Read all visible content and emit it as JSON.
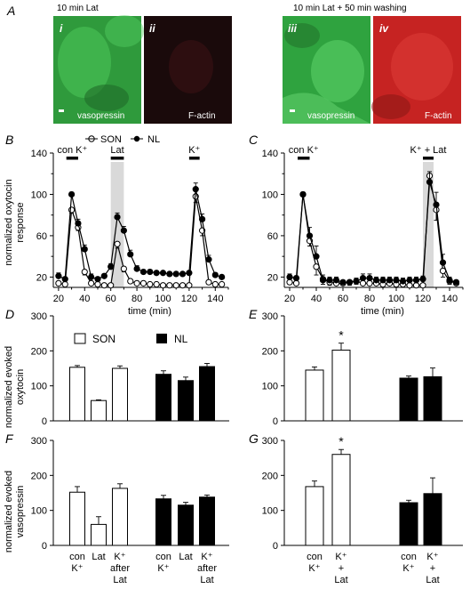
{
  "panels": {
    "A": {
      "letter": "A",
      "left_caption": "10 min Lat",
      "right_caption": "10 min Lat + 50 min washing",
      "images": [
        {
          "numeral": "i",
          "label": "vasopressin",
          "color": "#2f9a3c",
          "scale_bar": true
        },
        {
          "numeral": "ii",
          "label": "F-actin",
          "color": "#1a0a0b",
          "scale_bar": false
        },
        {
          "numeral": "iii",
          "label": "vasopressin",
          "color": "#2fa33f",
          "scale_bar": true
        },
        {
          "numeral": "iv",
          "label": "F-actin",
          "color": "#c62322",
          "scale_bar": false
        }
      ]
    },
    "legend_BC": {
      "open_label": "SON",
      "filled_label": "NL"
    },
    "legend_D": {
      "open_label": "SON",
      "filled_label": "NL"
    },
    "labels": {
      "B": "B",
      "C": "C",
      "D": "D",
      "E": "E",
      "F": "F",
      "G": "G"
    },
    "ylabel_BC": [
      "normalized oxytocin",
      "response"
    ],
    "ylabel_DE": [
      "normalized evoked",
      "oxytocin"
    ],
    "ylabel_FG": [
      "normalized evoked",
      "vasopressin"
    ],
    "xcats_DF": [
      [
        "con",
        "K⁺"
      ],
      [
        "Lat"
      ],
      [
        "K⁺",
        "after",
        "Lat"
      ],
      [
        "con",
        "K⁺"
      ],
      [
        "Lat"
      ],
      [
        "K⁺",
        "after",
        "Lat"
      ]
    ],
    "xcats_EG": [
      [
        "con",
        "K⁺"
      ],
      [
        "K⁺",
        "+",
        "Lat"
      ],
      [
        "con",
        "K⁺"
      ],
      [
        "K⁺",
        "+",
        "Lat"
      ]
    ]
  },
  "chart_data": [
    {
      "id": "B",
      "type": "line",
      "xlabel": "time (min)",
      "ylabel": "normalized oxytocin response",
      "xlim": [
        16,
        150
      ],
      "ylim": [
        10,
        140
      ],
      "xticks": [
        20,
        40,
        60,
        80,
        100,
        120,
        140
      ],
      "yticks": [
        20,
        60,
        100,
        140
      ],
      "yticks_minor": [
        40,
        80,
        120
      ],
      "stimuli": [
        {
          "label": "con K⁺",
          "start": 26,
          "end": 35,
          "shaded": false
        },
        {
          "label": "Lat",
          "start": 60,
          "end": 70,
          "shaded": true
        },
        {
          "label": "K⁺",
          "start": 120,
          "end": 128,
          "shaded": false
        }
      ],
      "series": [
        {
          "name": "SON",
          "marker": "open",
          "x": [
            20,
            25,
            30,
            35,
            40,
            45,
            50,
            55,
            60,
            65,
            70,
            75,
            80,
            85,
            90,
            95,
            100,
            105,
            110,
            115,
            120,
            125,
            130,
            135,
            140,
            145
          ],
          "y": [
            14,
            13,
            85,
            68,
            25,
            14,
            13,
            12,
            12,
            52,
            28,
            16,
            14,
            14,
            13,
            13,
            12,
            12,
            12,
            12,
            12,
            98,
            65,
            15,
            13,
            13
          ],
          "err": [
            2,
            1,
            3,
            3,
            3,
            2,
            1,
            1,
            1,
            4,
            3,
            2,
            1,
            1,
            1,
            1,
            1,
            1,
            1,
            1,
            1,
            6,
            5,
            2,
            1,
            1
          ]
        },
        {
          "name": "NL",
          "marker": "filled",
          "x": [
            20,
            25,
            30,
            35,
            40,
            45,
            50,
            55,
            60,
            65,
            70,
            75,
            80,
            85,
            90,
            95,
            100,
            105,
            110,
            115,
            120,
            125,
            130,
            135,
            140,
            145
          ],
          "y": [
            21,
            18,
            100,
            72,
            47,
            20,
            18,
            21,
            30,
            78,
            65,
            42,
            28,
            25,
            25,
            24,
            24,
            23,
            23,
            23,
            24,
            105,
            76,
            37,
            22,
            20
          ],
          "err": [
            3,
            2,
            2,
            4,
            4,
            3,
            2,
            2,
            3,
            4,
            4,
            4,
            3,
            2,
            2,
            2,
            2,
            2,
            2,
            2,
            2,
            6,
            5,
            4,
            2,
            2
          ]
        }
      ]
    },
    {
      "id": "C",
      "type": "line",
      "xlabel": "time (min)",
      "ylabel": "",
      "xlim": [
        16,
        150
      ],
      "ylim": [
        10,
        140
      ],
      "xticks": [
        20,
        40,
        60,
        80,
        100,
        120,
        140
      ],
      "yticks": [
        20,
        60,
        100,
        140
      ],
      "yticks_minor": [
        40,
        80,
        120
      ],
      "stimuli": [
        {
          "label": "con K⁺",
          "start": 26,
          "end": 35,
          "shaded": false
        },
        {
          "label": "K⁺ + Lat",
          "start": 120,
          "end": 128,
          "shaded": true
        }
      ],
      "series": [
        {
          "name": "SON",
          "marker": "open",
          "x": [
            20,
            25,
            30,
            35,
            40,
            45,
            50,
            55,
            60,
            65,
            70,
            75,
            80,
            85,
            90,
            95,
            100,
            105,
            110,
            115,
            120,
            125,
            130,
            135,
            140,
            145
          ],
          "y": [
            15,
            14,
            100,
            55,
            30,
            18,
            15,
            14,
            14,
            15,
            16,
            14,
            14,
            14,
            13,
            14,
            13,
            13,
            12,
            12,
            12,
            118,
            85,
            26,
            16,
            14
          ],
          "err": [
            2,
            2,
            2,
            5,
            8,
            5,
            3,
            2,
            2,
            3,
            3,
            2,
            2,
            2,
            2,
            2,
            2,
            2,
            2,
            2,
            2,
            5,
            10,
            6,
            3,
            2
          ],
          "err_up_only": false
        },
        {
          "name": "NL",
          "marker": "filled",
          "x": [
            20,
            25,
            30,
            35,
            40,
            45,
            50,
            55,
            60,
            65,
            70,
            75,
            80,
            85,
            90,
            95,
            100,
            105,
            110,
            115,
            120,
            125,
            130,
            135,
            140,
            145
          ],
          "y": [
            20,
            19,
            100,
            60,
            40,
            17,
            17,
            17,
            15,
            15,
            16,
            19,
            19,
            17,
            17,
            17,
            17,
            16,
            17,
            17,
            18,
            112,
            90,
            34,
            17,
            15
          ],
          "err": [
            3,
            2,
            2,
            8,
            10,
            5,
            3,
            3,
            2,
            2,
            3,
            4,
            4,
            3,
            3,
            3,
            3,
            3,
            3,
            3,
            3,
            10,
            12,
            8,
            3,
            2
          ]
        }
      ]
    },
    {
      "id": "D",
      "type": "bar",
      "ylabel": "normalized evoked oxytocin",
      "ylim": [
        0,
        300
      ],
      "yticks": [
        0,
        100,
        200,
        300
      ],
      "values": [
        153,
        58,
        150,
        133,
        115,
        155
      ],
      "err": [
        5,
        2,
        7,
        10,
        10,
        9
      ],
      "fills": [
        "open",
        "open",
        "open",
        "filled",
        "filled",
        "filled"
      ]
    },
    {
      "id": "E",
      "type": "bar",
      "ylabel": "",
      "ylim": [
        0,
        300
      ],
      "yticks": [
        0,
        100,
        200,
        300
      ],
      "values": [
        145,
        202,
        122,
        126
      ],
      "err": [
        9,
        20,
        6,
        25
      ],
      "fills": [
        "open",
        "open",
        "filled",
        "filled"
      ],
      "significance": [
        {
          "bar": 1,
          "mark": "*"
        }
      ]
    },
    {
      "id": "F",
      "type": "bar",
      "ylabel": "normalized evoked vasopressin",
      "ylim": [
        0,
        300
      ],
      "yticks": [
        0,
        100,
        200,
        300
      ],
      "values": [
        152,
        60,
        163,
        133,
        115,
        138
      ],
      "err": [
        16,
        22,
        13,
        10,
        8,
        6
      ],
      "fills": [
        "open",
        "open",
        "open",
        "filled",
        "filled",
        "filled"
      ]
    },
    {
      "id": "G",
      "type": "bar",
      "ylabel": "",
      "ylim": [
        0,
        300
      ],
      "yticks": [
        0,
        100,
        200,
        300
      ],
      "values": [
        168,
        260,
        122,
        148
      ],
      "err": [
        16,
        14,
        7,
        45
      ],
      "fills": [
        "open",
        "open",
        "filled",
        "filled"
      ],
      "significance": [
        {
          "bar": 1,
          "mark": "*"
        }
      ]
    }
  ]
}
